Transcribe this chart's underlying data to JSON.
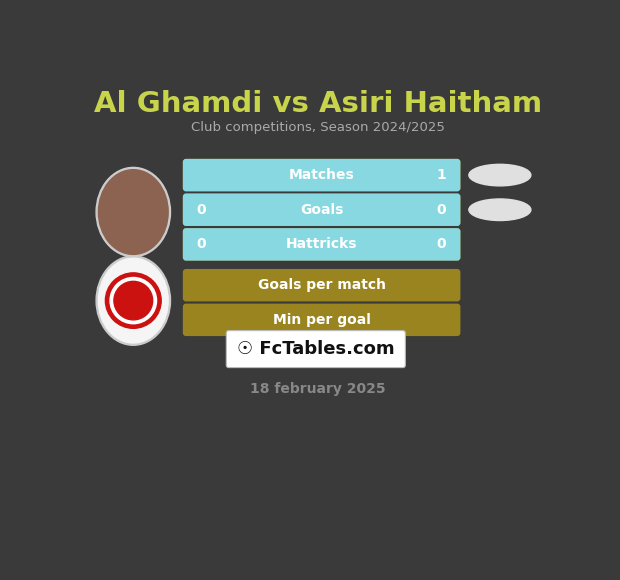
{
  "title": "Al Ghamdi vs Asiri Haitham",
  "subtitle": "Club competitions, Season 2024/2025",
  "date_text": "18 february 2025",
  "watermark": "FcTables.com",
  "background_color": "#3a3a3a",
  "bar_bg_color": "#9a8420",
  "bar_fg_color": "#87d8e0",
  "bar_text_color": "#ffffff",
  "title_color": "#c8d44a",
  "subtitle_color": "#aaaaaa",
  "date_color": "#888888",
  "watermark_box_color": "#ffffff",
  "watermark_text_color": "#111111",
  "rows": [
    {
      "label": "Matches",
      "left_val": null,
      "right_val": "1",
      "cyan_from": 0.5,
      "cyan_to": 1.0
    },
    {
      "label": "Goals",
      "left_val": "0",
      "right_val": "0",
      "cyan_from": 0.5,
      "cyan_to": 1.0
    },
    {
      "label": "Hattricks",
      "left_val": "0",
      "right_val": "0",
      "cyan_from": 0.5,
      "cyan_to": 1.0
    },
    {
      "label": "Goals per match",
      "left_val": null,
      "right_val": null,
      "cyan_from": null,
      "cyan_to": null
    },
    {
      "label": "Min per goal",
      "left_val": null,
      "right_val": null,
      "cyan_from": null,
      "cyan_to": null
    }
  ],
  "oval1_color": "#e0e0e0",
  "oval2_color": "#e0e0e0",
  "player1_circle_color": "#cccccc",
  "player2_circle_color": "#ffffff"
}
